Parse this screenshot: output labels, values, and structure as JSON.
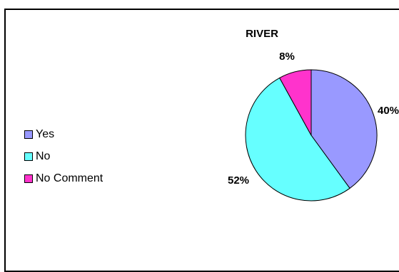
{
  "chart_data": {
    "type": "pie",
    "title": "RIVER",
    "categories": [
      "Yes",
      "No",
      "No Comment"
    ],
    "values": [
      40,
      52,
      8
    ],
    "labels": [
      "40%",
      "52%",
      "8%"
    ],
    "colors": [
      "#9999ff",
      "#66ffff",
      "#ff33cc"
    ],
    "legend_position": "left"
  }
}
